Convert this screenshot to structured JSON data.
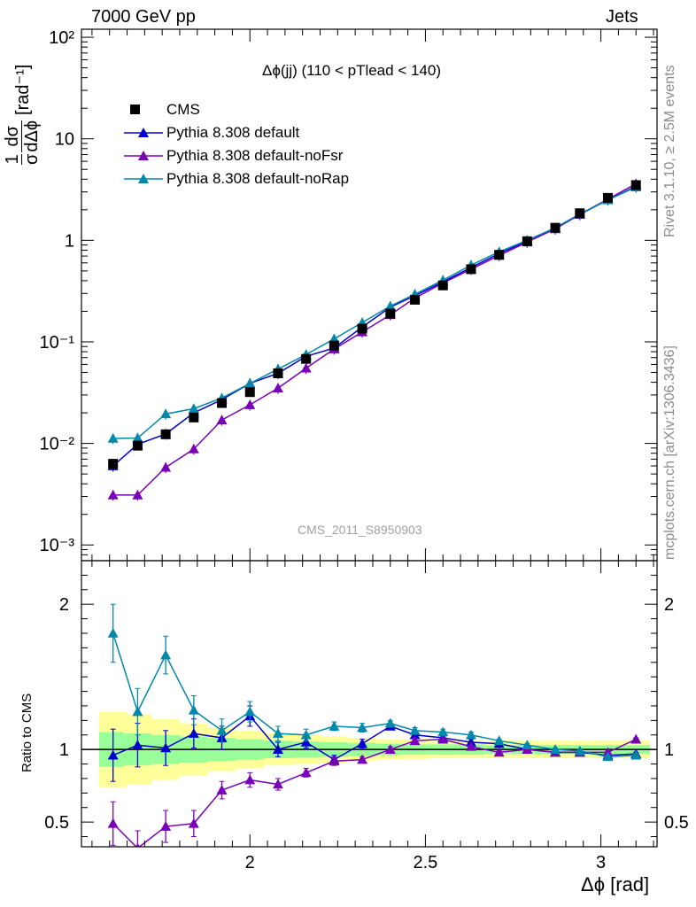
{
  "header": {
    "left": "7000 GeV pp",
    "right": "Jets"
  },
  "side_text": {
    "rivet": "Rivet 3.1.10, ≥ 2.5M events",
    "mcplots": "mcplots.cern.ch [arXiv:1306.3436]"
  },
  "plot_title": "Δϕ(jj) (110 < pTlead <  140)",
  "analysis_id": "CMS_2011_S8950903",
  "legend": [
    {
      "label": "CMS",
      "color": "#000000",
      "marker": "square"
    },
    {
      "label": "Pythia 8.308 default",
      "color": "#0000cc",
      "marker": "triangle"
    },
    {
      "label": "Pythia 8.308 default-noFsr",
      "color": "#7a00b8",
      "marker": "triangle"
    },
    {
      "label": "Pythia 8.308 default-noRap",
      "color": "#0088aa",
      "marker": "triangle"
    }
  ],
  "ylabel_main_parts": {
    "frac_num": "1",
    "frac_den": "σ",
    "d_num": "dσ",
    "d_den": "dΔϕ",
    "unit": "[rad⁻¹]"
  },
  "ylabel_ratio": "Ratio to CMS",
  "xlabel": "Δϕ [rad]",
  "colors": {
    "band_inner": "#99ff99",
    "band_outer": "#ffff99"
  },
  "chart_data": {
    "type": "line",
    "main_panel": {
      "yscale": "log",
      "xlim": [
        1.52,
        3.16
      ],
      "ylim": [
        0.0007,
        120
      ],
      "x_ticks": [
        "2",
        "2.5",
        "3"
      ],
      "y_ticks": [
        "10⁻³",
        "10⁻²",
        "10⁻¹",
        "1",
        "10",
        "10²"
      ],
      "x": [
        1.61,
        1.68,
        1.76,
        1.84,
        1.92,
        2.0,
        2.08,
        2.16,
        2.24,
        2.32,
        2.4,
        2.47,
        2.55,
        2.63,
        2.71,
        2.79,
        2.87,
        2.94,
        3.02,
        3.1
      ],
      "series": [
        {
          "name": "CMS",
          "values": [
            0.0063,
            0.0095,
            0.0123,
            0.018,
            0.025,
            0.032,
            0.049,
            0.068,
            0.092,
            0.135,
            0.19,
            0.26,
            0.36,
            0.52,
            0.72,
            0.98,
            1.33,
            1.85,
            2.62,
            3.5
          ]
        },
        {
          "name": "Pythia 8.308 default",
          "values": [
            0.006,
            0.0098,
            0.0124,
            0.02,
            0.027,
            0.039,
            0.049,
            0.072,
            0.087,
            0.14,
            0.22,
            0.285,
            0.39,
            0.54,
            0.74,
            0.98,
            1.3,
            1.8,
            2.5,
            3.4
          ]
        },
        {
          "name": "Pythia 8.308 default-noFsr",
          "values": [
            0.0031,
            0.0031,
            0.0058,
            0.0088,
            0.017,
            0.024,
            0.035,
            0.055,
            0.085,
            0.125,
            0.185,
            0.27,
            0.38,
            0.52,
            0.71,
            0.96,
            1.3,
            1.8,
            2.55,
            3.6
          ]
        },
        {
          "name": "Pythia 8.308 default-noRap",
          "values": [
            0.0112,
            0.0113,
            0.0195,
            0.022,
            0.028,
            0.039,
            0.054,
            0.075,
            0.107,
            0.155,
            0.225,
            0.295,
            0.405,
            0.57,
            0.77,
            1.0,
            1.33,
            1.82,
            2.5,
            3.35
          ]
        }
      ]
    },
    "ratio_panel": {
      "xlim": [
        1.52,
        3.16
      ],
      "ylim": [
        0.33,
        2.3
      ],
      "x_ticks": [
        "2",
        "2.5",
        "3"
      ],
      "y_ticks": [
        "0.5",
        "1",
        "2"
      ],
      "x": [
        1.61,
        1.68,
        1.76,
        1.84,
        1.92,
        2.0,
        2.08,
        2.16,
        2.24,
        2.32,
        2.4,
        2.47,
        2.55,
        2.63,
        2.71,
        2.79,
        2.87,
        2.94,
        3.02,
        3.1
      ],
      "band_inner_halfwidth": [
        0.12,
        0.11,
        0.1,
        0.09,
        0.08,
        0.07,
        0.06,
        0.055,
        0.05,
        0.045,
        0.04,
        0.035,
        0.035,
        0.035,
        0.03,
        0.03,
        0.03,
        0.03,
        0.03,
        0.03
      ],
      "band_outer_halfwidth": [
        0.26,
        0.24,
        0.21,
        0.18,
        0.15,
        0.13,
        0.11,
        0.1,
        0.09,
        0.08,
        0.07,
        0.065,
        0.06,
        0.06,
        0.06,
        0.06,
        0.06,
        0.06,
        0.06,
        0.06
      ],
      "series": [
        {
          "name": "Pythia 8.308 default",
          "values": [
            0.96,
            1.03,
            1.01,
            1.11,
            1.08,
            1.23,
            1.0,
            1.05,
            0.93,
            1.04,
            1.16,
            1.1,
            1.08,
            1.05,
            1.04,
            1.0,
            0.98,
            0.98,
            0.96,
            0.97
          ],
          "errors": [
            0.18,
            0.15,
            0.12,
            0.1,
            0.08,
            0.07,
            0.05,
            0.04,
            0.03,
            0.03,
            0.02,
            0.02,
            0.02,
            0.02,
            0.01,
            0.01,
            0.01,
            0.01,
            0.01,
            0.01
          ]
        },
        {
          "name": "Pythia 8.308 default-noFsr",
          "values": [
            0.49,
            0.32,
            0.47,
            0.49,
            0.72,
            0.79,
            0.76,
            0.84,
            0.92,
            0.93,
            1.0,
            1.06,
            1.07,
            1.02,
            0.98,
            1.0,
            0.98,
            0.98,
            0.98,
            1.07
          ],
          "errors": [
            0.15,
            0.12,
            0.11,
            0.09,
            0.06,
            0.05,
            0.04,
            0.03,
            0.03,
            0.02,
            0.02,
            0.02,
            0.02,
            0.01,
            0.01,
            0.01,
            0.01,
            0.01,
            0.01,
            0.01
          ]
        },
        {
          "name": "Pythia 8.308 default-noRap",
          "values": [
            1.8,
            1.26,
            1.65,
            1.27,
            1.13,
            1.26,
            1.11,
            1.1,
            1.16,
            1.15,
            1.18,
            1.13,
            1.12,
            1.1,
            1.06,
            1.03,
            1.0,
            0.99,
            0.95,
            0.96
          ],
          "errors": [
            0.2,
            0.16,
            0.13,
            0.1,
            0.08,
            0.07,
            0.05,
            0.04,
            0.03,
            0.03,
            0.02,
            0.02,
            0.02,
            0.02,
            0.01,
            0.01,
            0.01,
            0.01,
            0.01,
            0.01
          ]
        }
      ]
    }
  }
}
